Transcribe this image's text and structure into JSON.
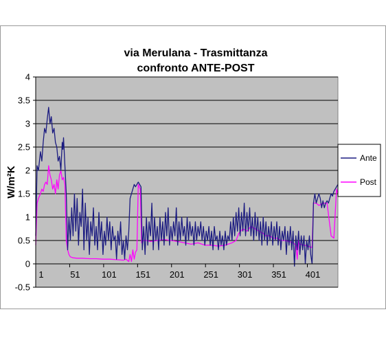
{
  "chart_data": {
    "type": "line",
    "title": [
      "via Merulana - Trasmittanza",
      "confronto ANTE-POST"
    ],
    "xlabel": "",
    "ylabel": "W/m²K",
    "ylim": [
      -0.5,
      4
    ],
    "yticks": [
      "-0.5",
      "0",
      "0.5",
      "1",
      "1.5",
      "2",
      "2.5",
      "3",
      "3.5",
      "4"
    ],
    "yticks_values": [
      -0.5,
      0,
      0.5,
      1,
      1.5,
      2,
      2.5,
      3,
      3.5,
      4
    ],
    "xlim": [
      1,
      446
    ],
    "xticks": [
      "1",
      "51",
      "101",
      "151",
      "201",
      "251",
      "301",
      "351",
      "401"
    ],
    "xticks_values": [
      1,
      51,
      101,
      151,
      201,
      251,
      301,
      351,
      401
    ],
    "grid": "horizontal",
    "legend": "right",
    "series": [
      {
        "name": "Ante",
        "color": "#1a1a80",
        "points": [
          [
            1,
            0.6
          ],
          [
            3,
            2.1
          ],
          [
            5,
            2.0
          ],
          [
            8,
            2.4
          ],
          [
            10,
            2.2
          ],
          [
            12,
            2.6
          ],
          [
            14,
            2.9
          ],
          [
            16,
            2.8
          ],
          [
            18,
            3.1
          ],
          [
            20,
            3.35
          ],
          [
            22,
            3.0
          ],
          [
            24,
            3.15
          ],
          [
            26,
            2.8
          ],
          [
            28,
            2.9
          ],
          [
            30,
            2.6
          ],
          [
            32,
            2.5
          ],
          [
            34,
            2.2
          ],
          [
            36,
            2.3
          ],
          [
            38,
            2.0
          ],
          [
            40,
            2.6
          ],
          [
            41,
            2.45
          ],
          [
            42,
            2.7
          ],
          [
            44,
            2.1
          ],
          [
            46,
            1.5
          ],
          [
            48,
            0.3
          ],
          [
            50,
            1.0
          ],
          [
            52,
            0.5
          ],
          [
            54,
            1.2
          ],
          [
            56,
            0.6
          ],
          [
            58,
            1.5
          ],
          [
            60,
            0.7
          ],
          [
            62,
            1.4
          ],
          [
            64,
            0.4
          ],
          [
            66,
            1.1
          ],
          [
            68,
            0.8
          ],
          [
            70,
            1.6
          ],
          [
            72,
            0.3
          ],
          [
            74,
            1.3
          ],
          [
            76,
            0.5
          ],
          [
            78,
            1.0
          ],
          [
            80,
            0.2
          ],
          [
            82,
            0.9
          ],
          [
            84,
            0.6
          ],
          [
            86,
            1.2
          ],
          [
            88,
            0.4
          ],
          [
            90,
            0.8
          ],
          [
            92,
            0.3
          ],
          [
            94,
            1.1
          ],
          [
            96,
            0.5
          ],
          [
            98,
            0.9
          ],
          [
            100,
            0.2
          ],
          [
            102,
            0.7
          ],
          [
            104,
            0.4
          ],
          [
            106,
            1.0
          ],
          [
            108,
            0.5
          ],
          [
            110,
            0.9
          ],
          [
            112,
            0.3
          ],
          [
            114,
            0.8
          ],
          [
            116,
            0.5
          ],
          [
            118,
            0.6
          ],
          [
            120,
            0.1
          ],
          [
            122,
            0.7
          ],
          [
            124,
            0.4
          ],
          [
            126,
            0.9
          ],
          [
            128,
            0.2
          ],
          [
            130,
            0.5
          ],
          [
            132,
            0.1
          ],
          [
            134,
            0.6
          ],
          [
            136,
            0.3
          ],
          [
            138,
            0.7
          ],
          [
            140,
            1.4
          ],
          [
            142,
            1.5
          ],
          [
            144,
            1.6
          ],
          [
            146,
            1.7
          ],
          [
            148,
            1.65
          ],
          [
            150,
            1.7
          ],
          [
            152,
            1.75
          ],
          [
            154,
            1.7
          ],
          [
            156,
            1.65
          ],
          [
            158,
            0.3
          ],
          [
            160,
            0.8
          ],
          [
            162,
            0.2
          ],
          [
            164,
            1.0
          ],
          [
            166,
            0.4
          ],
          [
            168,
            0.9
          ],
          [
            170,
            0.6
          ],
          [
            172,
            1.3
          ],
          [
            174,
            0.3
          ],
          [
            176,
            1.0
          ],
          [
            178,
            0.5
          ],
          [
            180,
            0.8
          ],
          [
            182,
            0.3
          ],
          [
            184,
            1.0
          ],
          [
            186,
            0.5
          ],
          [
            188,
            0.9
          ],
          [
            190,
            0.4
          ],
          [
            192,
            1.1
          ],
          [
            194,
            0.6
          ],
          [
            196,
            1.2
          ],
          [
            198,
            0.4
          ],
          [
            200,
            0.8
          ],
          [
            202,
            0.5
          ],
          [
            204,
            0.9
          ],
          [
            206,
            0.6
          ],
          [
            208,
            1.2
          ],
          [
            210,
            0.4
          ],
          [
            212,
            0.9
          ],
          [
            214,
            0.5
          ],
          [
            216,
            1.0
          ],
          [
            218,
            0.6
          ],
          [
            220,
            0.8
          ],
          [
            222,
            0.4
          ],
          [
            224,
            1.0
          ],
          [
            226,
            0.5
          ],
          [
            228,
            0.9
          ],
          [
            230,
            0.6
          ],
          [
            232,
            0.8
          ],
          [
            234,
            0.4
          ],
          [
            236,
            0.9
          ],
          [
            238,
            0.5
          ],
          [
            240,
            0.8
          ],
          [
            242,
            0.6
          ],
          [
            244,
            0.9
          ],
          [
            246,
            0.5
          ],
          [
            248,
            0.8
          ],
          [
            250,
            0.4
          ],
          [
            252,
            0.7
          ],
          [
            254,
            0.5
          ],
          [
            256,
            0.8
          ],
          [
            258,
            0.4
          ],
          [
            260,
            0.7
          ],
          [
            262,
            0.3
          ],
          [
            264,
            0.8
          ],
          [
            266,
            0.5
          ],
          [
            268,
            0.6
          ],
          [
            270,
            0.3
          ],
          [
            272,
            0.7
          ],
          [
            274,
            0.4
          ],
          [
            276,
            0.6
          ],
          [
            278,
            0.3
          ],
          [
            280,
            0.7
          ],
          [
            282,
            0.4
          ],
          [
            284,
            0.6
          ],
          [
            286,
            0.5
          ],
          [
            288,
            0.9
          ],
          [
            290,
            0.5
          ],
          [
            292,
            1.0
          ],
          [
            294,
            0.6
          ],
          [
            296,
            1.1
          ],
          [
            298,
            0.7
          ],
          [
            300,
            1.2
          ],
          [
            302,
            0.6
          ],
          [
            304,
            1.1
          ],
          [
            306,
            0.7
          ],
          [
            308,
            1.3
          ],
          [
            310,
            0.6
          ],
          [
            312,
            1.1
          ],
          [
            314,
            0.7
          ],
          [
            316,
            1.2
          ],
          [
            318,
            0.6
          ],
          [
            320,
            1.0
          ],
          [
            322,
            0.5
          ],
          [
            324,
            1.1
          ],
          [
            326,
            0.6
          ],
          [
            328,
            1.0
          ],
          [
            330,
            0.5
          ],
          [
            332,
            0.9
          ],
          [
            334,
            0.4
          ],
          [
            336,
            1.0
          ],
          [
            338,
            0.5
          ],
          [
            340,
            0.9
          ],
          [
            342,
            0.4
          ],
          [
            344,
            0.8
          ],
          [
            346,
            0.5
          ],
          [
            348,
            0.9
          ],
          [
            350,
            0.4
          ],
          [
            352,
            0.8
          ],
          [
            354,
            0.5
          ],
          [
            356,
            0.9
          ],
          [
            358,
            0.4
          ],
          [
            360,
            0.8
          ],
          [
            362,
            0.3
          ],
          [
            364,
            0.7
          ],
          [
            366,
            0.5
          ],
          [
            368,
            0.8
          ],
          [
            370,
            0.2
          ],
          [
            372,
            0.7
          ],
          [
            374,
            0.4
          ],
          [
            376,
            0.8
          ],
          [
            378,
            0.3
          ],
          [
            380,
            0.7
          ],
          [
            382,
            -0.05
          ],
          [
            384,
            0.6
          ],
          [
            386,
            0.3
          ],
          [
            388,
            0.7
          ],
          [
            390,
            0.2
          ],
          [
            392,
            0.6
          ],
          [
            394,
            0.3
          ],
          [
            396,
            0.6
          ],
          [
            398,
            0.0
          ],
          [
            400,
            0.5
          ],
          [
            402,
            0.3
          ],
          [
            404,
            0.6
          ],
          [
            406,
            0.2
          ],
          [
            408,
            0.0
          ],
          [
            410,
            1.3
          ],
          [
            412,
            1.5
          ],
          [
            414,
            1.3
          ],
          [
            416,
            1.4
          ],
          [
            418,
            1.5
          ],
          [
            420,
            1.4
          ],
          [
            422,
            1.2
          ],
          [
            424,
            1.35
          ],
          [
            426,
            1.2
          ],
          [
            428,
            1.3
          ],
          [
            430,
            1.35
          ],
          [
            432,
            1.3
          ],
          [
            434,
            1.4
          ],
          [
            436,
            1.5
          ],
          [
            438,
            1.45
          ],
          [
            440,
            1.55
          ],
          [
            442,
            1.6
          ],
          [
            444,
            1.65
          ],
          [
            446,
            1.7
          ]
        ]
      },
      {
        "name": "Post",
        "color": "#ff00ff",
        "points": [
          [
            1,
            0.4
          ],
          [
            3,
            1.3
          ],
          [
            5,
            1.4
          ],
          [
            8,
            1.5
          ],
          [
            10,
            1.6
          ],
          [
            12,
            1.55
          ],
          [
            14,
            1.7
          ],
          [
            16,
            1.75
          ],
          [
            18,
            1.7
          ],
          [
            20,
            2.1
          ],
          [
            22,
            1.9
          ],
          [
            24,
            1.8
          ],
          [
            26,
            1.6
          ],
          [
            28,
            1.7
          ],
          [
            30,
            1.5
          ],
          [
            32,
            1.8
          ],
          [
            34,
            1.6
          ],
          [
            36,
            1.9
          ],
          [
            38,
            2.0
          ],
          [
            40,
            1.8
          ],
          [
            42,
            1.85
          ],
          [
            44,
            1.7
          ],
          [
            46,
            0.5
          ],
          [
            48,
            0.3
          ],
          [
            50,
            0.2
          ],
          [
            52,
            0.15
          ],
          [
            56,
            0.13
          ],
          [
            62,
            0.12
          ],
          [
            70,
            0.12
          ],
          [
            80,
            0.11
          ],
          [
            90,
            0.11
          ],
          [
            100,
            0.1
          ],
          [
            110,
            0.1
          ],
          [
            120,
            0.09
          ],
          [
            130,
            0.08
          ],
          [
            134,
            0.1
          ],
          [
            138,
            0.05
          ],
          [
            140,
            0.2
          ],
          [
            142,
            0.05
          ],
          [
            144,
            0.3
          ],
          [
            146,
            0.1
          ],
          [
            148,
            0.25
          ],
          [
            150,
            0.3
          ],
          [
            152,
            1.7
          ],
          [
            155,
            1.6
          ],
          [
            157,
            0.45
          ],
          [
            160,
            0.5
          ],
          [
            165,
            0.5
          ],
          [
            170,
            0.48
          ],
          [
            180,
            0.5
          ],
          [
            190,
            0.52
          ],
          [
            200,
            0.5
          ],
          [
            210,
            0.48
          ],
          [
            220,
            0.45
          ],
          [
            230,
            0.42
          ],
          [
            240,
            0.45
          ],
          [
            250,
            0.4
          ],
          [
            260,
            0.4
          ],
          [
            270,
            0.38
          ],
          [
            280,
            0.4
          ],
          [
            290,
            0.45
          ],
          [
            296,
            0.5
          ],
          [
            300,
            0.65
          ],
          [
            306,
            0.75
          ],
          [
            312,
            0.7
          ],
          [
            318,
            0.8
          ],
          [
            324,
            0.75
          ],
          [
            330,
            0.7
          ],
          [
            336,
            0.65
          ],
          [
            340,
            0.6
          ],
          [
            346,
            0.6
          ],
          [
            350,
            0.55
          ],
          [
            356,
            0.55
          ],
          [
            362,
            0.5
          ],
          [
            368,
            0.5
          ],
          [
            374,
            0.48
          ],
          [
            380,
            0.45
          ],
          [
            384,
            0.4
          ],
          [
            386,
            0.1
          ],
          [
            388,
            0.5
          ],
          [
            390,
            0.42
          ],
          [
            396,
            0.4
          ],
          [
            402,
            0.38
          ],
          [
            408,
            0.35
          ],
          [
            410,
            1.3
          ],
          [
            414,
            1.3
          ],
          [
            418,
            1.25
          ],
          [
            424,
            1.3
          ],
          [
            430,
            1.3
          ],
          [
            436,
            0.6
          ],
          [
            440,
            0.55
          ],
          [
            444,
            1.6
          ],
          [
            446,
            1.5
          ]
        ]
      }
    ]
  }
}
